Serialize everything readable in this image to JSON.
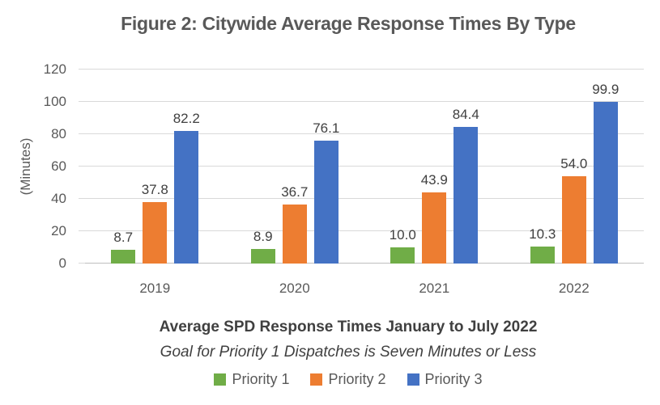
{
  "title": "Figure 2: Citywide Average Response Times By Type",
  "chart_data": {
    "type": "bar",
    "categories": [
      "2019",
      "2020",
      "2021",
      "2022"
    ],
    "series": [
      {
        "name": "Priority 1",
        "color": "#70AD47",
        "values": [
          8.7,
          8.9,
          10.0,
          10.3
        ]
      },
      {
        "name": "Priority 2",
        "color": "#ED7D31",
        "values": [
          37.8,
          36.7,
          43.9,
          54.0
        ]
      },
      {
        "name": "Priority 3",
        "color": "#4472C4",
        "values": [
          82.2,
          76.1,
          84.4,
          99.9
        ]
      }
    ],
    "data_labels": [
      [
        "8.7",
        "8.9",
        "10.0",
        "10.3"
      ],
      [
        "37.8",
        "36.7",
        "43.9",
        "54.0"
      ],
      [
        "82.2",
        "76.1",
        "84.4",
        "99.9"
      ]
    ],
    "ylabel": "(Minutes)",
    "yticks": [
      0,
      20,
      40,
      60,
      80,
      100,
      120
    ],
    "ylim": [
      0,
      120
    ],
    "xlabel": "Average SPD Response Times January to July 2022",
    "xlabel_sub": "Goal for Priority 1 Dispatches is Seven Minutes or Less",
    "legend_position": "bottom",
    "grid": true,
    "colors": {
      "title_text": "#595959",
      "axis_text": "#595959",
      "label_text": "#404040",
      "gridline": "#d9d9d9"
    }
  }
}
